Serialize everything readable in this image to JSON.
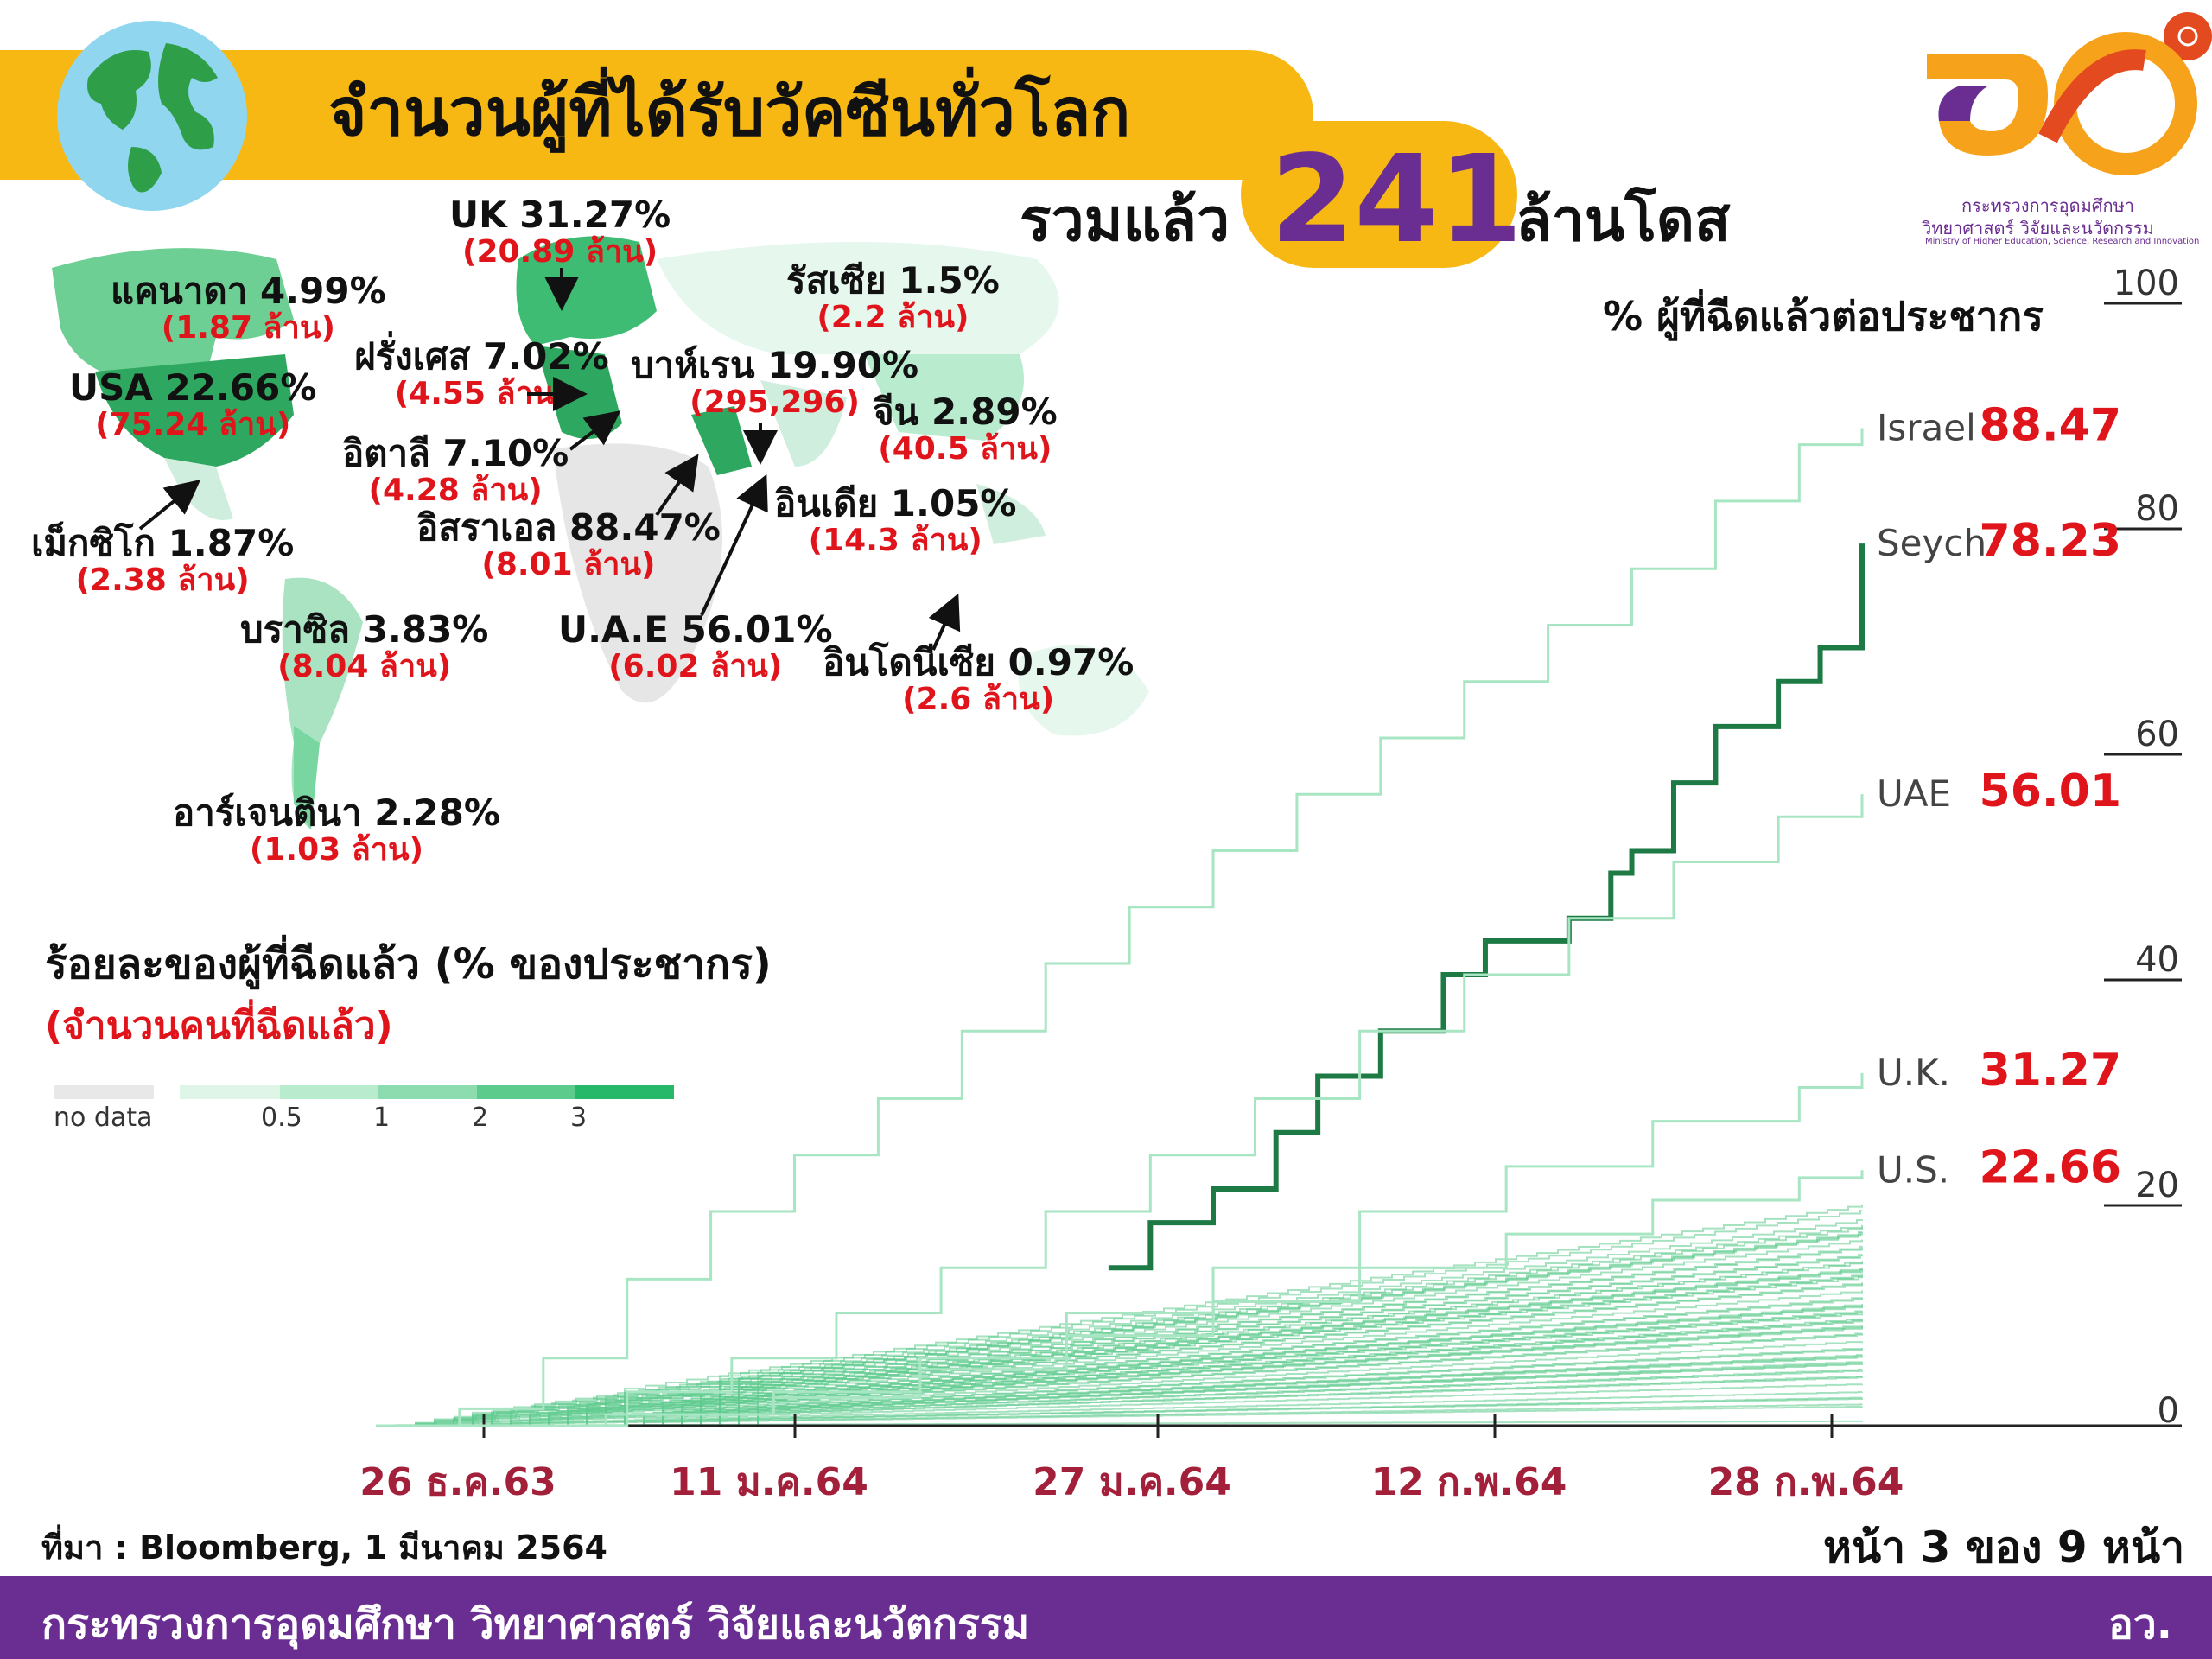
{
  "header": {
    "title": "จำนวนผู้ที่ได้รับวัคซีนทั่วโลก",
    "total_prefix": "รวมแล้ว",
    "total_number": "241",
    "total_suffix": "ล้านโดส"
  },
  "logo": {
    "line1": "กระทรวงการอุดมศึกษา",
    "line2": "วิทยาศาสตร์ วิจัยและนวัตกรรม",
    "line3": "Ministry of Higher Education, Science, Research and Innovation"
  },
  "map_annotations": [
    {
      "name": "UK 31.27%",
      "count": "(20.89 ล้าน)"
    },
    {
      "name": "แคนาดา 4.99%",
      "count": "(1.87 ล้าน)"
    },
    {
      "name": "รัสเซีย 1.5%",
      "count": "(2.2 ล้าน)"
    },
    {
      "name": "ฝรั่งเศส 7.02%",
      "count": "(4.55 ล้าน)"
    },
    {
      "name": "USA 22.66%",
      "count": "(75.24 ล้าน)"
    },
    {
      "name": "บาห์เรน 19.90%",
      "count": "(295,296)"
    },
    {
      "name": "จีน 2.89%",
      "count": "(40.5 ล้าน)"
    },
    {
      "name": "อิตาลี 7.10%",
      "count": "(4.28 ล้าน)"
    },
    {
      "name": "อินเดีย 1.05%",
      "count": "(14.3 ล้าน)"
    },
    {
      "name": "อิสราเอล 88.47%",
      "count": "(8.01 ล้าน)"
    },
    {
      "name": "เม็กซิโก 1.87%",
      "count": "(2.38 ล้าน)"
    },
    {
      "name": "บราซิล 3.83%",
      "count": "(8.04 ล้าน)"
    },
    {
      "name": "U.A.E 56.01%",
      "count": "(6.02 ล้าน)"
    },
    {
      "name": "อินโดนีเซีย 0.97%",
      "count": "(2.6 ล้าน)"
    },
    {
      "name": "อาร์เจนตินา 2.28%",
      "count": "(1.03 ล้าน)"
    }
  ],
  "map_legend": {
    "title": "ร้อยละของผู้ที่ฉีดแล้ว (% ของประชากร)",
    "subtitle": "(จำนวนคนที่ฉีดแล้ว)",
    "no_data": "no data",
    "ticks": [
      "0.5",
      "1",
      "2",
      "3"
    ],
    "colors": [
      "#e8e8e8",
      "#dff5e8",
      "#b9ebcf",
      "#8ddcaf",
      "#5ccb8c",
      "#28b86a"
    ]
  },
  "chart_data": {
    "type": "line",
    "ylabel": "% ผู้ที่ฉีดแล้วต่อประชากร",
    "ylim": [
      0,
      100
    ],
    "yticks": [
      "0",
      "20",
      "40",
      "60",
      "80",
      "100"
    ],
    "xticks": [
      "26 ธ.ค.63",
      "11 ม.ค.64",
      "27 ม.ค.64",
      "12 ก.พ.64",
      "28 ก.พ.64"
    ],
    "x_start": "2020-12-20",
    "x_end": "2021-03-01",
    "series": [
      {
        "name": "Israel",
        "value_label": "88.47",
        "color": "#a8e6c3",
        "points": [
          [
            "2020-12-20",
            0
          ],
          [
            "2020-12-24",
            1.5
          ],
          [
            "2020-12-28",
            6
          ],
          [
            "2021-01-01",
            13
          ],
          [
            "2021-01-05",
            19
          ],
          [
            "2021-01-09",
            24
          ],
          [
            "2021-01-13",
            29
          ],
          [
            "2021-01-17",
            35
          ],
          [
            "2021-01-21",
            41
          ],
          [
            "2021-01-25",
            46
          ],
          [
            "2021-01-29",
            51
          ],
          [
            "2021-02-02",
            56
          ],
          [
            "2021-02-06",
            61
          ],
          [
            "2021-02-10",
            66
          ],
          [
            "2021-02-14",
            71
          ],
          [
            "2021-02-18",
            76
          ],
          [
            "2021-02-22",
            82
          ],
          [
            "2021-02-26",
            87
          ],
          [
            "2021-03-01",
            88.47
          ]
        ]
      },
      {
        "name": "Seych.",
        "value_label": "78.23",
        "color": "#1d7a45",
        "points": [
          [
            "2021-01-24",
            14
          ],
          [
            "2021-01-26",
            18
          ],
          [
            "2021-01-29",
            21
          ],
          [
            "2021-02-01",
            26
          ],
          [
            "2021-02-03",
            31
          ],
          [
            "2021-02-06",
            35
          ],
          [
            "2021-02-09",
            40
          ],
          [
            "2021-02-11",
            43
          ],
          [
            "2021-02-15",
            45
          ],
          [
            "2021-02-17",
            49
          ],
          [
            "2021-02-18",
            51
          ],
          [
            "2021-02-20",
            57
          ],
          [
            "2021-02-22",
            62
          ],
          [
            "2021-02-25",
            66
          ],
          [
            "2021-02-27",
            69
          ],
          [
            "2021-03-01",
            78.23
          ]
        ]
      },
      {
        "name": "UAE",
        "value_label": "56.01",
        "color": "#a8e6c3",
        "points": [
          [
            "2020-12-27",
            0
          ],
          [
            "2021-01-01",
            3
          ],
          [
            "2021-01-06",
            6
          ],
          [
            "2021-01-11",
            10
          ],
          [
            "2021-01-16",
            14
          ],
          [
            "2021-01-21",
            19
          ],
          [
            "2021-01-26",
            24
          ],
          [
            "2021-01-31",
            29
          ],
          [
            "2021-02-05",
            35
          ],
          [
            "2021-02-10",
            40
          ],
          [
            "2021-02-15",
            45
          ],
          [
            "2021-02-20",
            50
          ],
          [
            "2021-02-25",
            54
          ],
          [
            "2021-03-01",
            56.01
          ]
        ]
      },
      {
        "name": "U.K.",
        "value_label": "31.27",
        "color": "#a8e6c3",
        "points": [
          [
            "2020-12-20",
            0
          ],
          [
            "2020-12-31",
            1
          ],
          [
            "2021-01-08",
            3
          ],
          [
            "2021-01-15",
            6
          ],
          [
            "2021-01-22",
            10
          ],
          [
            "2021-01-29",
            14
          ],
          [
            "2021-02-05",
            19
          ],
          [
            "2021-02-12",
            23
          ],
          [
            "2021-02-19",
            27
          ],
          [
            "2021-02-26",
            30
          ],
          [
            "2021-03-01",
            31.27
          ]
        ]
      },
      {
        "name": "U.S.",
        "value_label": "22.66",
        "color": "#a8e6c3",
        "points": [
          [
            "2020-12-20",
            0
          ],
          [
            "2020-12-31",
            1
          ],
          [
            "2021-01-08",
            2.5
          ],
          [
            "2021-01-15",
            5
          ],
          [
            "2021-01-22",
            8
          ],
          [
            "2021-01-29",
            11
          ],
          [
            "2021-02-05",
            14
          ],
          [
            "2021-02-12",
            17
          ],
          [
            "2021-02-19",
            20
          ],
          [
            "2021-02-26",
            22
          ],
          [
            "2021-03-01",
            22.66
          ]
        ]
      }
    ]
  },
  "footer": {
    "source": "ที่มา : Bloomberg, 1 มีนาคม 2564",
    "page": "หน้า 3 ของ 9 หน้า",
    "ministry": "กระทรวงการอุดมศึกษา วิทยาศาสตร์ วิจัยและนวัตกรรม",
    "abbr": "อว."
  }
}
